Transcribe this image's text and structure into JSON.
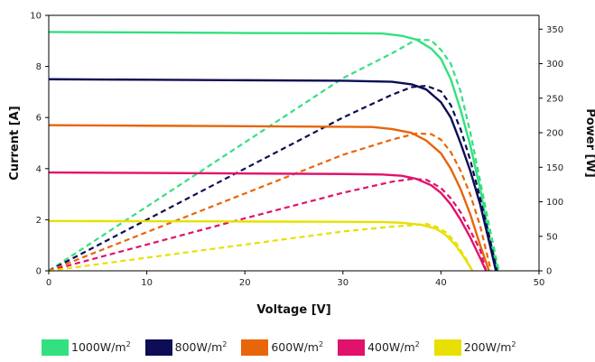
{
  "chart_data": {
    "type": "line",
    "xlabel": "Voltage [V]",
    "ylabel": "Current [A]",
    "y2label": "Power [W]",
    "xlim": [
      0,
      50
    ],
    "ylim": [
      0,
      10
    ],
    "y2lim": [
      0,
      370
    ],
    "x_ticks": [
      "0",
      "10",
      "20",
      "30",
      "40",
      "50"
    ],
    "y_ticks": [
      "0",
      "2",
      "4",
      "6",
      "8",
      "10"
    ],
    "y2_ticks": [
      "0",
      "50",
      "100",
      "150",
      "200",
      "250",
      "300",
      "350"
    ],
    "grid": false,
    "legend_position": "bottom",
    "series": [
      {
        "name": "1000W/m²",
        "legend_label": "1000W/m",
        "legend_sup": "2",
        "color": "#33e07f",
        "current": {
          "x": [
            0,
            10,
            20,
            30,
            34,
            36,
            37.5,
            39,
            40,
            41,
            42,
            43,
            44,
            45,
            45.8
          ],
          "y": [
            9.35,
            9.33,
            9.31,
            9.3,
            9.29,
            9.2,
            9.05,
            8.7,
            8.3,
            7.5,
            6.3,
            4.9,
            3.2,
            1.2,
            0
          ]
        },
        "power": {
          "x": [
            0,
            10,
            20,
            30,
            35,
            37.5,
            39,
            40,
            41,
            42,
            43,
            44,
            45,
            45.9
          ],
          "y": [
            0,
            93,
            186,
            279,
            315,
            335,
            334,
            320,
            300,
            260,
            200,
            130,
            60,
            0
          ]
        }
      },
      {
        "name": "800W/m²",
        "legend_label": "800W/m",
        "legend_sup": "2",
        "color": "#0d0d55",
        "current": {
          "x": [
            0,
            10,
            20,
            30,
            35,
            37,
            38.5,
            40,
            41,
            42,
            43,
            44,
            45,
            45.6
          ],
          "y": [
            7.5,
            7.48,
            7.46,
            7.44,
            7.4,
            7.3,
            7.1,
            6.6,
            6.0,
            5.0,
            3.9,
            2.6,
            1.0,
            0
          ]
        },
        "power": {
          "x": [
            0,
            10,
            20,
            30,
            35,
            37,
            38.5,
            40,
            41,
            42,
            43,
            44,
            45,
            45.7
          ],
          "y": [
            0,
            74,
            148,
            222,
            255,
            266,
            268,
            260,
            240,
            205,
            160,
            105,
            45,
            0
          ]
        }
      },
      {
        "name": "600W/m²",
        "legend_label": "600W/m",
        "legend_sup": "2",
        "color": "#e8650a",
        "current": {
          "x": [
            0,
            10,
            20,
            30,
            33,
            35,
            37,
            38.5,
            40,
            41,
            42,
            43,
            44,
            44.9
          ],
          "y": [
            5.7,
            5.68,
            5.66,
            5.64,
            5.63,
            5.55,
            5.4,
            5.1,
            4.6,
            4.0,
            3.2,
            2.2,
            1.0,
            0
          ]
        },
        "power": {
          "x": [
            0,
            10,
            20,
            30,
            35,
            37.5,
            39,
            40,
            41,
            42,
            43,
            44,
            45.1
          ],
          "y": [
            0,
            56,
            112,
            168,
            190,
            199,
            198,
            190,
            172,
            145,
            110,
            65,
            0
          ]
        }
      },
      {
        "name": "400W/m²",
        "legend_label": "400W/m",
        "legend_sup": "2",
        "color": "#e0126b",
        "current": {
          "x": [
            0,
            10,
            20,
            30,
            34,
            36,
            37.5,
            39,
            40,
            41,
            42,
            43,
            44,
            44.6
          ],
          "y": [
            3.85,
            3.83,
            3.81,
            3.79,
            3.77,
            3.72,
            3.6,
            3.35,
            3.05,
            2.6,
            2.0,
            1.3,
            0.5,
            0
          ]
        },
        "power": {
          "x": [
            0,
            10,
            20,
            30,
            35,
            37,
            38.5,
            40,
            41,
            42,
            43,
            44,
            44.6
          ],
          "y": [
            0,
            38,
            76,
            113,
            129,
            133,
            132,
            120,
            105,
            85,
            58,
            30,
            0
          ]
        }
      },
      {
        "name": "200W/m²",
        "legend_label": "200W/m",
        "legend_sup": "2",
        "color": "#e8e000",
        "current": {
          "x": [
            0,
            10,
            20,
            30,
            34,
            36,
            38,
            39.5,
            40.5,
            41.5,
            42.5,
            43.2
          ],
          "y": [
            1.95,
            1.94,
            1.93,
            1.92,
            1.91,
            1.88,
            1.8,
            1.65,
            1.4,
            1.0,
            0.45,
            0
          ]
        },
        "power": {
          "x": [
            0,
            10,
            20,
            30,
            35,
            37,
            38.5,
            39.5,
            40.5,
            41.5,
            42.5,
            43.2
          ],
          "y": [
            0,
            19,
            38,
            57,
            64,
            66,
            68,
            64,
            56,
            41,
            19,
            0
          ]
        }
      }
    ]
  }
}
